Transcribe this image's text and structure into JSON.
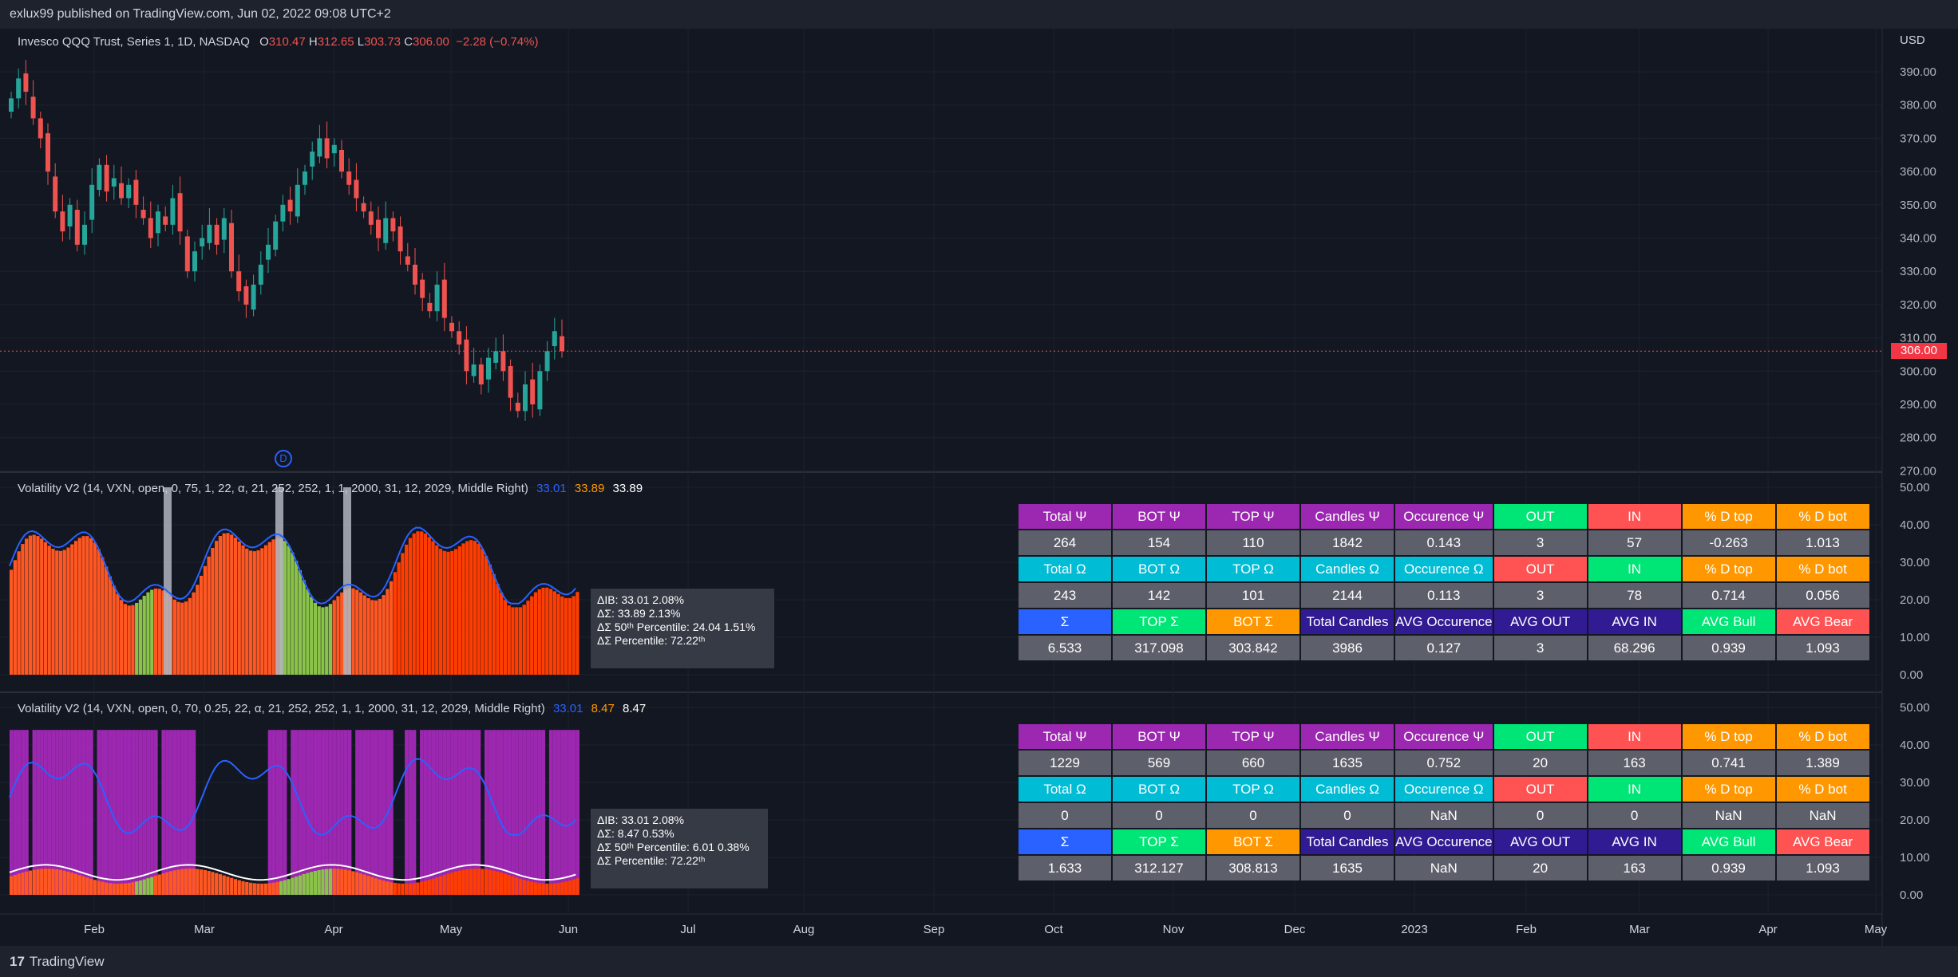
{
  "header": {
    "published": "exlux99 published on TradingView.com, Jun 02, 2022 09:08 UTC+2"
  },
  "main_pane": {
    "symbol": "Invesco QQQ Trust, Series 1, 1D, NASDAQ",
    "o_label": "O",
    "o_value": "310.47",
    "h_label": "H",
    "h_value": "312.65",
    "l_label": "L",
    "l_value": "303.73",
    "c_label": "C",
    "c_value": "306.00",
    "change": "−2.28 (−0.74%)",
    "currency": "USD",
    "last_price": "306.00",
    "price_axis": [
      "390.00",
      "380.00",
      "370.00",
      "360.00",
      "350.00",
      "340.00",
      "330.00",
      "320.00",
      "310.00",
      "300.00",
      "290.00",
      "280.00",
      "270.00"
    ],
    "dividend_marker": "D"
  },
  "pane1": {
    "legend": "Volatility V2 (14, VXN, open, 0, 75, 1, 22, α, 21, 252, 252, 1, 1, 2000, 31, 12, 2029, Middle Right)",
    "v1": "33.01",
    "v2": "33.89",
    "v3": "33.89",
    "axis": [
      "50.00",
      "40.00",
      "30.00",
      "20.00",
      "10.00",
      "0.00"
    ],
    "tooltip": [
      "ΔIB: 33.01  2.08%",
      "ΔΣ: 33.89  2.13%",
      "ΔΣ 50ᵗʰ Percentile: 24.04  1.51%",
      "ΔΣ Percentile: 72.22ᵗʰ"
    ],
    "table": [
      [
        "Total Ψ",
        "BOT Ψ",
        "TOP Ψ",
        "Candles Ψ",
        "Occurence Ψ",
        "OUT",
        "IN",
        "% D top",
        "% D bot"
      ],
      [
        "264",
        "154",
        "110",
        "1842",
        "0.143",
        "3",
        "57",
        "-0.263",
        "1.013"
      ],
      [
        "Total Ω",
        "BOT Ω",
        "TOP Ω",
        "Candles Ω",
        "Occurence Ω",
        "OUT",
        "IN",
        "% D top",
        "% D bot"
      ],
      [
        "243",
        "142",
        "101",
        "2144",
        "0.113",
        "3",
        "78",
        "0.714",
        "0.056"
      ],
      [
        "Σ",
        "TOP Σ",
        "BOT Σ",
        "Total Candles",
        "AVG Occurence",
        "AVG OUT",
        "AVG IN",
        "AVG Bull",
        "AVG Bear"
      ],
      [
        "6.533",
        "317.098",
        "303.842",
        "3986",
        "0.127",
        "3",
        "68.296",
        "0.939",
        "1.093"
      ]
    ]
  },
  "pane2": {
    "legend": "Volatility V2 (14, VXN, open, 0, 70, 0.25, 22, α, 21, 252, 252, 1, 1, 2000, 31, 12, 2029, Middle Right)",
    "v1": "33.01",
    "v2": "8.47",
    "v3": "8.47",
    "axis": [
      "50.00",
      "40.00",
      "30.00",
      "20.00",
      "10.00",
      "0.00"
    ],
    "tooltip": [
      "ΔIB: 33.01  2.08%",
      "ΔΣ: 8.47  0.53%",
      "ΔΣ 50ᵗʰ Percentile: 6.01  0.38%",
      "ΔΣ Percentile: 72.22ᵗʰ"
    ],
    "table": [
      [
        "Total Ψ",
        "BOT Ψ",
        "TOP Ψ",
        "Candles Ψ",
        "Occurence Ψ",
        "OUT",
        "IN",
        "% D top",
        "% D bot"
      ],
      [
        "1229",
        "569",
        "660",
        "1635",
        "0.752",
        "20",
        "163",
        "0.741",
        "1.389"
      ],
      [
        "Total Ω",
        "BOT Ω",
        "TOP Ω",
        "Candles Ω",
        "Occurence Ω",
        "OUT",
        "IN",
        "% D top",
        "% D bot"
      ],
      [
        "0",
        "0",
        "0",
        "0",
        "NaN",
        "0",
        "0",
        "NaN",
        "NaN"
      ],
      [
        "Σ",
        "TOP Σ",
        "BOT Σ",
        "Total Candles",
        "AVG Occurence",
        "AVG OUT",
        "AVG IN",
        "AVG Bull",
        "AVG Bear"
      ],
      [
        "1.633",
        "312.127",
        "308.813",
        "1635",
        "NaN",
        "20",
        "163",
        "0.939",
        "1.093"
      ]
    ]
  },
  "table_header_colors": [
    "#9c27b0",
    "#9c27b0",
    "#9c27b0",
    "#9c27b0",
    "#9c27b0",
    "#00e676",
    "#ff5252",
    "#ff9800",
    "#ff9800"
  ],
  "table_header_colors_omega": [
    "#00bcd4",
    "#00bcd4",
    "#00bcd4",
    "#00bcd4",
    "#00bcd4",
    "#ff5252",
    "#00e676",
    "#ff9800",
    "#ff9800"
  ],
  "table_header_colors_sigma": [
    "#2962ff",
    "#00e676",
    "#ff9800",
    "#311b92",
    "#311b92",
    "#311b92",
    "#311b92",
    "#00e676",
    "#ff5252"
  ],
  "time_axis": [
    "Feb",
    "Mar",
    "Apr",
    "May",
    "Jun",
    "Jul",
    "Aug",
    "Sep",
    "Oct",
    "Nov",
    "Dec",
    "2023",
    "Feb",
    "Mar",
    "Apr",
    "May"
  ],
  "footer": {
    "brand": "TradingView"
  },
  "colors": {
    "up": "#26a69a",
    "down": "#ef5350",
    "background": "#131722",
    "vol_line": "#2962ff",
    "purple_zone": "#9c27b0"
  }
}
